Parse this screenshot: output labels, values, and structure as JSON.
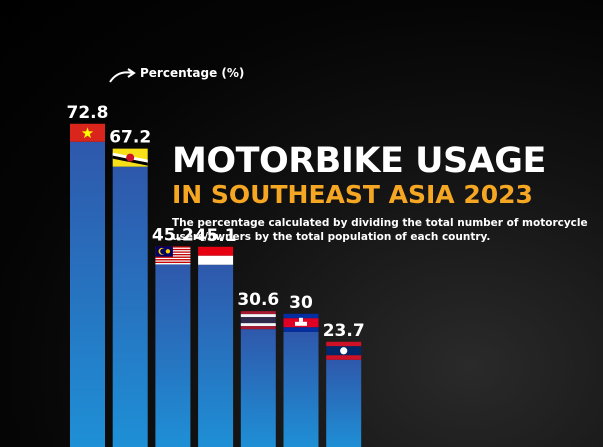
{
  "title": {
    "line1": "MOTORBIKE USAGE",
    "line2": "IN SOUTHEAST ASIA 2023",
    "subtitle": "The percentage calculated by dividing the total number of motorcycle users/owners by the total population of each country."
  },
  "legend": {
    "label": "Percentage (%)",
    "icon": "curved-arrow-icon"
  },
  "colors": {
    "background": "#000000",
    "bar_top": "#2f58ab",
    "bar_bottom": "#1e90d6",
    "title_white": "#ffffff",
    "title_accent": "#f5a623"
  },
  "chart_data": {
    "type": "bar",
    "categories": [
      "Vietnam",
      "Brunei",
      "Malaysia",
      "Indonesia",
      "Thailand",
      "Cambodia",
      "Laos"
    ],
    "values": [
      72.8,
      67.2,
      45.2,
      45.1,
      30.6,
      30,
      23.7
    ],
    "value_labels": [
      "72.8",
      "67.2",
      "45.2",
      "45.1",
      "30.6",
      "30",
      "23.7"
    ],
    "flags": [
      "vietnam-flag-icon",
      "brunei-flag-icon",
      "malaysia-flag-icon",
      "indonesia-flag-icon",
      "thailand-flag-icon",
      "cambodia-flag-icon",
      "laos-flag-icon"
    ],
    "title": "MOTORBIKE USAGE IN SOUTHEAST ASIA 2023",
    "ylabel": "Percentage (%)",
    "grid": false
  }
}
